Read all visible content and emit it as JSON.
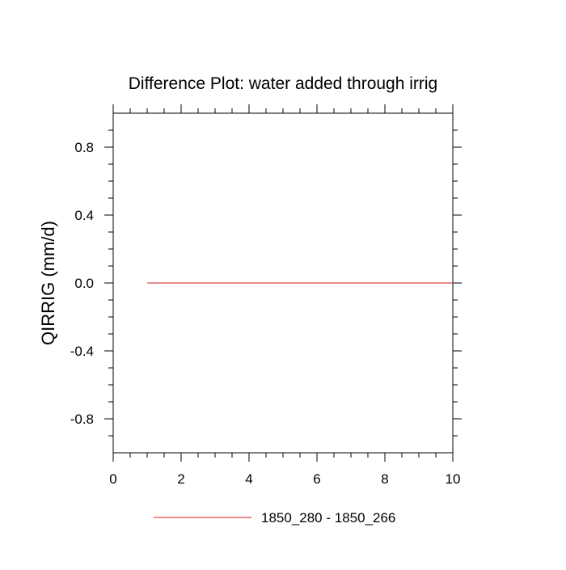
{
  "chart_data": {
    "type": "line",
    "title": "Difference Plot: water added through irrig",
    "xlabel": "",
    "ylabel": "QIRRIG  (mm/d)",
    "xlim": [
      0,
      10
    ],
    "ylim": [
      -1,
      1
    ],
    "x_ticks": [
      "0",
      "2",
      "4",
      "6",
      "8",
      "10"
    ],
    "x_tick_values": [
      0,
      2,
      4,
      6,
      8,
      10
    ],
    "y_ticks": [
      "0.8",
      "0.4",
      "0.0",
      "-0.4",
      "-0.8"
    ],
    "y_tick_values": [
      0.8,
      0.4,
      0.0,
      -0.4,
      -0.8
    ],
    "grid": false,
    "legend_position": "bottom",
    "series": [
      {
        "name": "1850_280 - 1850_266",
        "color": "#e06666",
        "x": [
          1,
          2,
          3,
          4,
          5,
          6,
          7,
          8,
          9,
          10
        ],
        "values": [
          0,
          0,
          0,
          0,
          0,
          0,
          0,
          0,
          0,
          0
        ]
      }
    ]
  }
}
